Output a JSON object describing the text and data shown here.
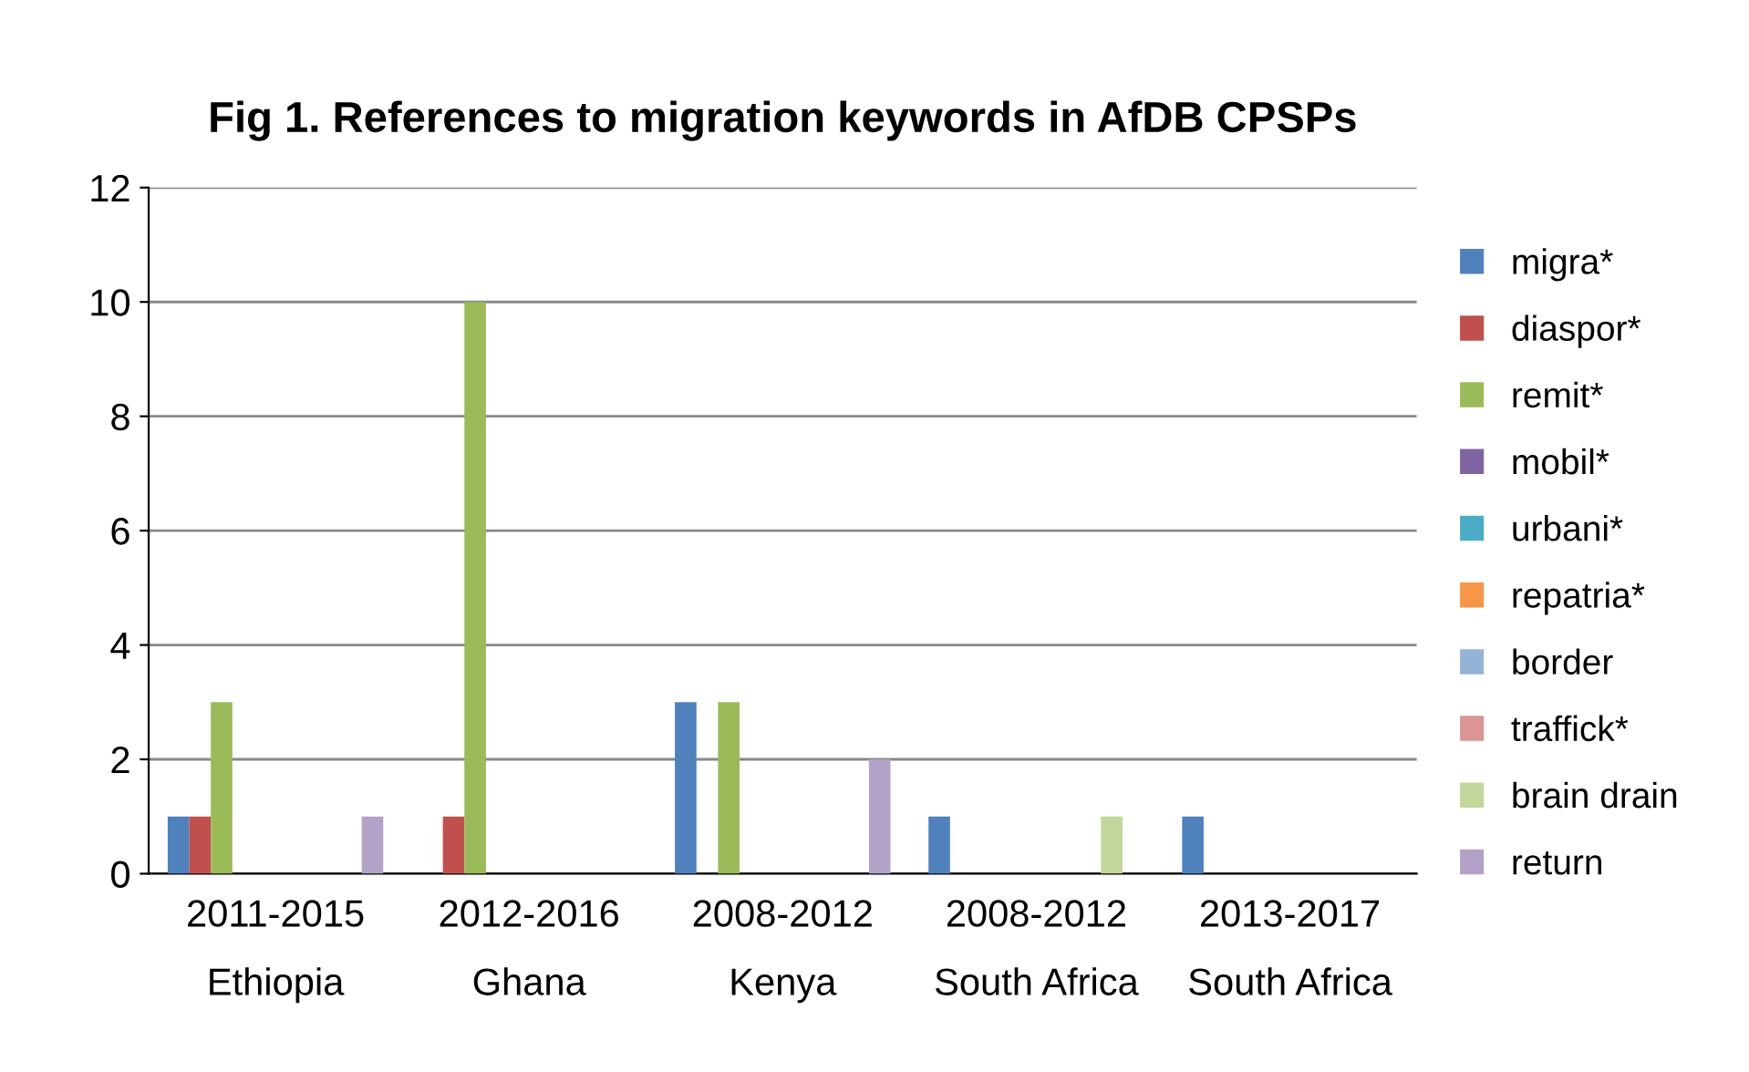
{
  "chart_data": {
    "type": "bar",
    "title": "Fig 1. References to migration keywords in AfDB CPSPs",
    "categories": [
      "2011-2015\nEthiopia",
      "2012-2016\nGhana",
      "2008-2012\nKenya",
      "2008-2012\nSouth Africa",
      "2013-2017\nSouth Africa"
    ],
    "series": [
      {
        "name": "migra*",
        "color": "#4f81bd",
        "values": [
          1,
          0,
          3,
          1,
          1
        ]
      },
      {
        "name": "diaspor*",
        "color": "#c0504d",
        "values": [
          1,
          1,
          0,
          0,
          0
        ]
      },
      {
        "name": "remit*",
        "color": "#9bbb59",
        "values": [
          3,
          10,
          3,
          0,
          0
        ]
      },
      {
        "name": "mobil*",
        "color": "#8064a2",
        "values": [
          0,
          0,
          0,
          0,
          0
        ]
      },
      {
        "name": "urbani*",
        "color": "#4bacc6",
        "values": [
          0,
          0,
          0,
          0,
          0
        ]
      },
      {
        "name": "repatria*",
        "color": "#f79646",
        "values": [
          0,
          0,
          0,
          0,
          0
        ]
      },
      {
        "name": "border",
        "color": "#95b3d7",
        "values": [
          0,
          0,
          0,
          0,
          0
        ]
      },
      {
        "name": "traffick*",
        "color": "#d99694",
        "values": [
          0,
          0,
          0,
          0,
          0
        ]
      },
      {
        "name": "brain drain",
        "color": "#c3d69b",
        "values": [
          0,
          0,
          0,
          1,
          0
        ]
      },
      {
        "name": "return",
        "color": "#b3a2c7",
        "values": [
          1,
          0,
          2,
          0,
          0
        ]
      }
    ],
    "ylim": [
      0,
      12
    ],
    "yticks": [
      0,
      2,
      4,
      6,
      8,
      10,
      12
    ],
    "grid": "y",
    "legend": "right"
  }
}
